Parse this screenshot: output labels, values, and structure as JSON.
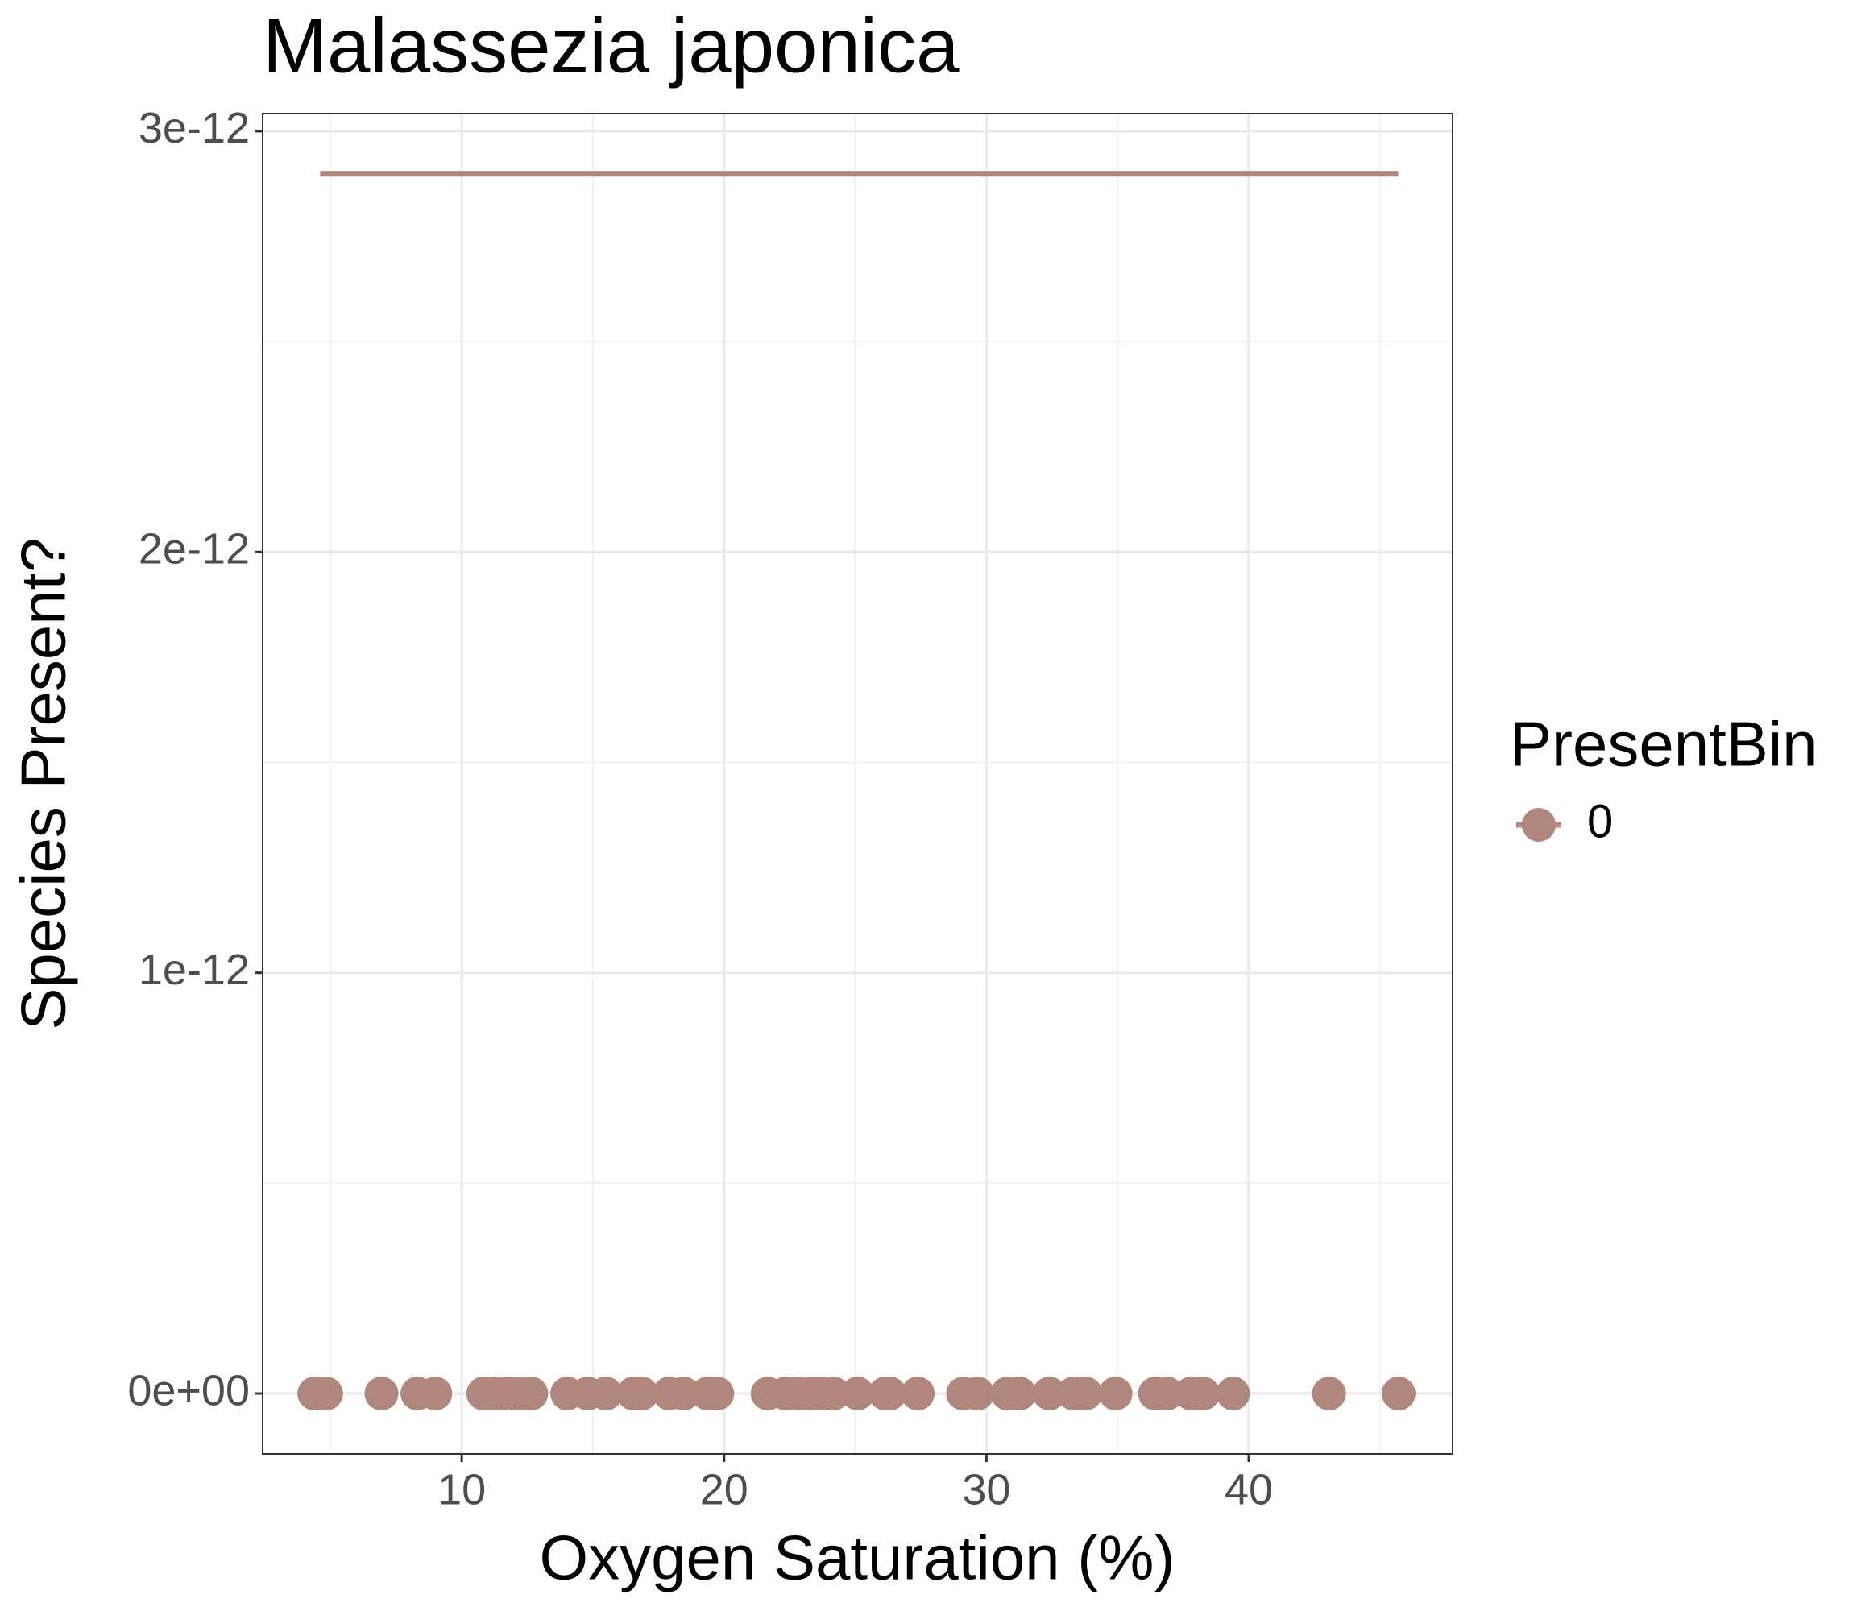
{
  "chart_data": {
    "type": "scatter",
    "title": "Malassezia japonica",
    "x_label": "Oxygen Saturation (%)",
    "y_label": "Species Present?",
    "legend_title": "PresentBin",
    "legend_position": "right",
    "grid": true,
    "xlim": [
      2.41,
      47.77
    ],
    "ylim": [
      -1.435e-13,
      3.042e-12
    ],
    "xticks": [
      10,
      20,
      30,
      40
    ],
    "xminor": [
      5,
      15,
      25,
      35,
      45
    ],
    "yticks": [
      {
        "value": 0,
        "label": "0e+00"
      },
      {
        "value": 1e-12,
        "label": "1e-12"
      },
      {
        "value": 2e-12,
        "label": "2e-12"
      },
      {
        "value": 3e-12,
        "label": "3e-12"
      }
    ],
    "yminor": [
      5e-13,
      1.5e-12,
      2.5e-12
    ],
    "series": [
      {
        "name": "0",
        "color": "#b0877c",
        "x": [
          4.38,
          4.83,
          6.94,
          8.31,
          8.99,
          10.82,
          11.28,
          11.74,
          12.19,
          12.65,
          14.02,
          14.8,
          15.49,
          16.54,
          16.86,
          17.91,
          18.46,
          19.37,
          19.74,
          21.66,
          22.35,
          22.8,
          23.26,
          23.72,
          24.17,
          25.09,
          26.14,
          26.32,
          27.38,
          29.11,
          29.66,
          30.8,
          31.26,
          32.4,
          33.32,
          33.78,
          34.92,
          36.43,
          36.89,
          37.8,
          38.26,
          39.4,
          43.06,
          45.71
        ],
        "values": [
          0,
          0,
          0,
          0,
          0,
          0,
          0,
          0,
          0,
          0,
          0,
          0,
          0,
          0,
          0,
          0,
          0,
          0,
          0,
          0,
          0,
          0,
          0,
          0,
          0,
          0,
          0,
          0,
          0,
          0,
          0,
          0,
          0,
          0,
          0,
          0,
          0,
          0,
          0,
          0,
          0,
          0,
          0,
          0
        ],
        "trend": {
          "x": [
            4.6,
            45.7
          ],
          "values": [
            2.899e-12,
            2.899e-12
          ]
        }
      }
    ]
  }
}
